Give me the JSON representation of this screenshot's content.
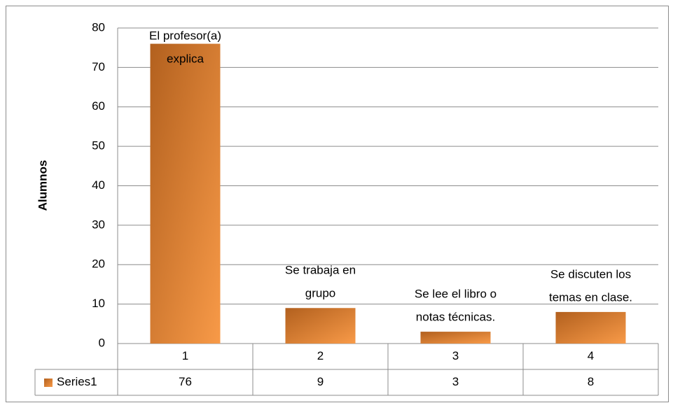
{
  "chart_data": {
    "type": "bar",
    "categories": [
      "1",
      "2",
      "3",
      "4"
    ],
    "series": [
      {
        "name": "Series1",
        "color": "#f79646",
        "values": [
          76,
          9,
          3,
          8
        ]
      }
    ],
    "bar_labels": [
      [
        "El profesor(a)",
        "explica"
      ],
      [
        "Se trabaja en",
        "grupo"
      ],
      [
        "Se lee el libro o",
        "notas técnicas."
      ],
      [
        "Se discuten los",
        "temas en clase."
      ]
    ],
    "y_axis_label": "Alumnos",
    "ylim": [
      0,
      80
    ],
    "yticks": [
      0,
      10,
      20,
      30,
      40,
      50,
      60,
      70,
      80
    ],
    "grid": true,
    "data_table": true
  }
}
